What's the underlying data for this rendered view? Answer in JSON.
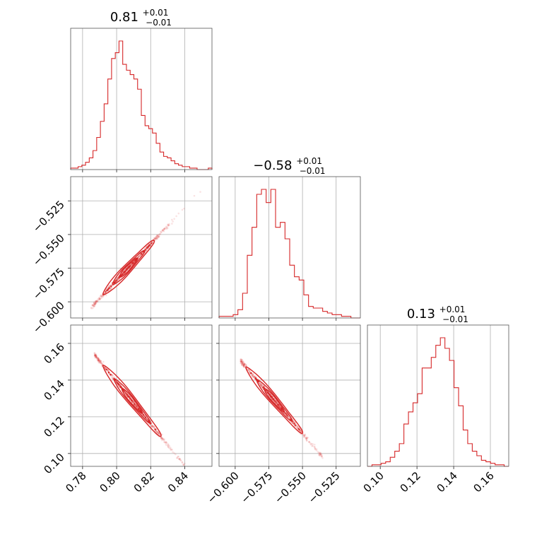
{
  "chart_data": {
    "type": "corner",
    "color": "#d62728",
    "parameters": [
      {
        "title_value": "0.81",
        "title_plus": "+0.01",
        "title_minus": "−0.01",
        "range": [
          0.773,
          0.856
        ],
        "ticks": [
          0.78,
          0.8,
          0.82,
          0.84
        ],
        "tick_labels": [
          "0.78",
          "0.80",
          "0.82",
          "0.84"
        ],
        "histogram": {
          "bin_edges_range": [
            0.773,
            0.856
          ],
          "counts": [
            1,
            1,
            2,
            3,
            5,
            8,
            13,
            22,
            33,
            45,
            62,
            76,
            80,
            88,
            72,
            68,
            65,
            62,
            55,
            37,
            30,
            28,
            25,
            18,
            12,
            9,
            8,
            6,
            4,
            3,
            2,
            2,
            1,
            1,
            0,
            0,
            0,
            1
          ]
        }
      },
      {
        "title_value": "−0.58",
        "title_plus": "+0.01",
        "title_minus": "−0.01",
        "range": [
          -0.612,
          -0.507
        ],
        "ticks": [
          -0.6,
          -0.575,
          -0.55,
          -0.525
        ],
        "tick_labels": [
          "−0.600",
          "−0.575",
          "−0.550",
          "−0.525"
        ],
        "histogram": {
          "bin_edges_range": [
            -0.612,
            -0.507
          ],
          "counts": [
            1,
            1,
            1,
            2,
            5,
            15,
            38,
            55,
            75,
            78,
            70,
            78,
            55,
            58,
            48,
            32,
            25,
            23,
            14,
            7,
            6,
            6,
            4,
            3,
            2,
            2,
            1,
            1,
            0,
            0
          ]
        }
      },
      {
        "title_value": "0.13",
        "title_plus": "+0.01",
        "title_minus": "−0.01",
        "range": [
          0.093,
          0.17
        ],
        "ticks": [
          0.1,
          0.12,
          0.14,
          0.16
        ],
        "tick_labels": [
          "0.10",
          "0.12",
          "0.14",
          "0.16"
        ],
        "histogram": {
          "bin_edges_range": [
            0.093,
            0.17
          ],
          "counts": [
            0,
            1,
            1,
            2,
            3,
            6,
            10,
            15,
            28,
            36,
            42,
            48,
            65,
            65,
            72,
            80,
            85,
            78,
            70,
            52,
            40,
            24,
            15,
            10,
            7,
            4,
            3,
            2,
            1,
            1,
            0
          ]
        }
      }
    ],
    "pairs": [
      {
        "x_param": 0,
        "y_param": 1,
        "relation": {
          "slope": 1.345,
          "intercept": -1.66
        },
        "x_span": [
          0.785,
          0.85
        ],
        "core_span": [
          0.792,
          0.822
        ]
      },
      {
        "x_param": 0,
        "y_param": 2,
        "relation": {
          "slope": -1.14,
          "intercept": 1.051
        },
        "x_span": [
          0.787,
          0.84
        ],
        "core_span": [
          0.792,
          0.826
        ]
      },
      {
        "x_param": 1,
        "y_param": 2,
        "relation": {
          "slope": -0.86,
          "intercept": -0.362
        },
        "x_span": [
          -0.596,
          -0.535
        ],
        "core_span": [
          -0.592,
          -0.55
        ]
      }
    ],
    "grid": true,
    "legend": "none"
  }
}
